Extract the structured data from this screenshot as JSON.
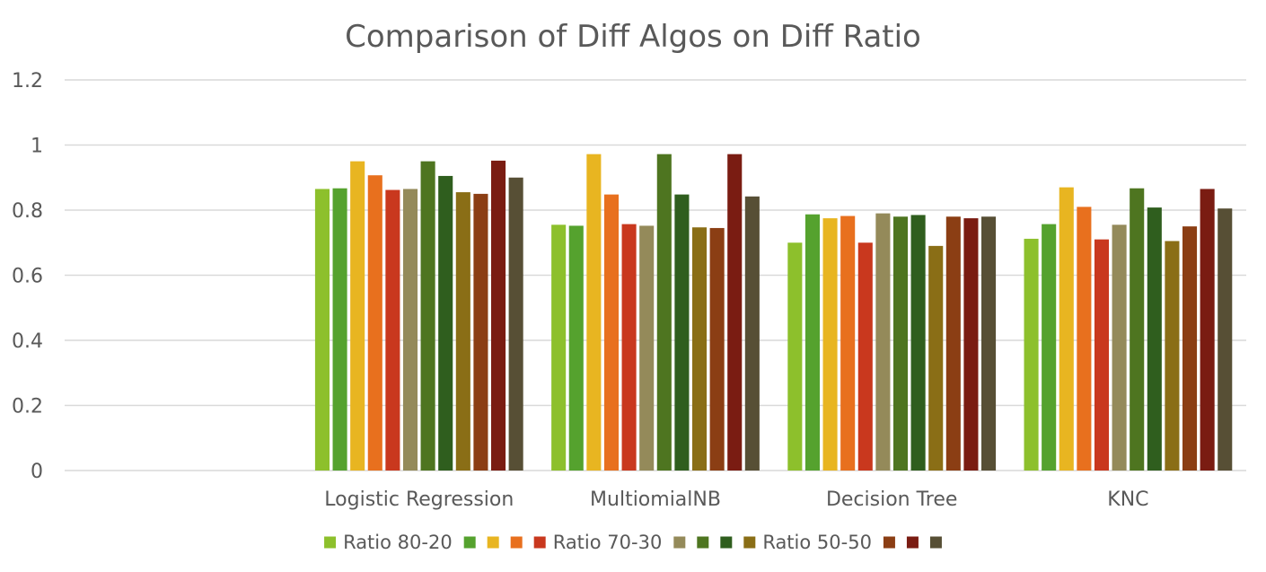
{
  "chart_data": {
    "type": "bar",
    "title": "Comparison of Diff Algos on Diff Ratio",
    "categories": [
      "",
      "Logistic Regression",
      "MultiomialNB",
      "Decision Tree",
      "KNC"
    ],
    "ylim": [
      0,
      1.2
    ],
    "yticks": [
      0,
      0.2,
      0.4,
      0.6,
      0.8,
      1,
      1.2
    ],
    "yticklabels": [
      "0",
      "0.2",
      "0.4",
      "0.6",
      "0.8",
      "1",
      "1.2"
    ],
    "grid": true,
    "legend_position": "bottom",
    "series": [
      {
        "name": "Ratio 80-20",
        "color": "#8DC02C",
        "values": [
          null,
          0.865,
          0.755,
          0.7,
          0.712
        ]
      },
      {
        "name": "",
        "color": "#55A22E",
        "values": [
          null,
          0.867,
          0.752,
          0.787,
          0.757
        ]
      },
      {
        "name": "",
        "color": "#E8B521",
        "values": [
          null,
          0.95,
          0.972,
          0.775,
          0.87
        ]
      },
      {
        "name": "",
        "color": "#E8701E",
        "values": [
          null,
          0.907,
          0.848,
          0.782,
          0.81
        ]
      },
      {
        "name": "Ratio 70-30",
        "color": "#C9381E",
        "values": [
          null,
          0.862,
          0.757,
          0.7,
          0.71
        ]
      },
      {
        "name": "",
        "color": "#948A5A",
        "values": [
          null,
          0.865,
          0.752,
          0.79,
          0.755
        ]
      },
      {
        "name": "",
        "color": "#4E7520",
        "values": [
          null,
          0.95,
          0.972,
          0.78,
          0.867
        ]
      },
      {
        "name": "",
        "color": "#2F5E1E",
        "values": [
          null,
          0.905,
          0.848,
          0.785,
          0.808
        ]
      },
      {
        "name": "Ratio 50-50",
        "color": "#8A6E16",
        "values": [
          null,
          0.855,
          0.747,
          0.69,
          0.705
        ]
      },
      {
        "name": "",
        "color": "#8B3E14",
        "values": [
          null,
          0.85,
          0.745,
          0.78,
          0.75
        ]
      },
      {
        "name": "",
        "color": "#7A1C12",
        "values": [
          null,
          0.952,
          0.972,
          0.775,
          0.865
        ]
      },
      {
        "name": "",
        "color": "#574F35",
        "values": [
          null,
          0.9,
          0.842,
          0.78,
          0.805
        ]
      }
    ]
  }
}
